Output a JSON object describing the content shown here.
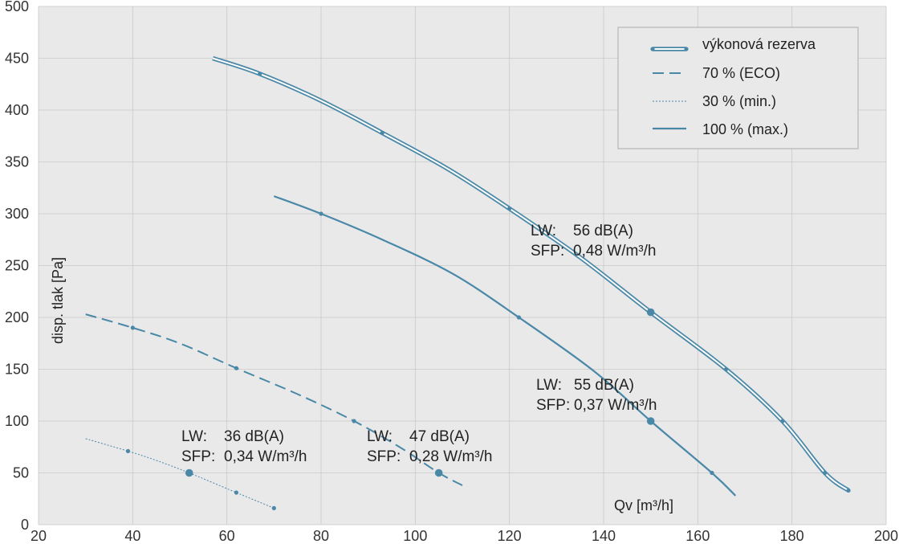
{
  "chart_data": {
    "type": "line",
    "xlabel": "Qv [m³/h]",
    "ylabel": "disp. tlak [Pa]",
    "xlim": [
      20,
      200
    ],
    "ylim": [
      0,
      500
    ],
    "xticks": [
      20,
      40,
      60,
      80,
      100,
      120,
      140,
      160,
      180,
      200
    ],
    "yticks": [
      0,
      50,
      100,
      150,
      200,
      250,
      300,
      350,
      400,
      450,
      500
    ],
    "grid": true,
    "legend_position": "top-right",
    "colors": {
      "line": "#4a88a8",
      "background": "#e9e9e9",
      "grid": "#c9c9c9"
    },
    "series": [
      {
        "name": "výkonová rezerva",
        "style": "double",
        "points": [
          [
            57,
            450
          ],
          [
            67,
            435
          ],
          [
            80,
            409
          ],
          [
            93,
            378
          ],
          [
            107,
            343
          ],
          [
            120,
            305
          ],
          [
            135,
            258
          ],
          [
            150,
            205
          ],
          [
            166,
            150
          ],
          [
            178,
            100
          ],
          [
            187,
            50
          ],
          [
            192,
            33
          ]
        ],
        "markers": [
          [
            67,
            435
          ],
          [
            93,
            378
          ],
          [
            120,
            305
          ],
          [
            166,
            150
          ],
          [
            178,
            100
          ],
          [
            187,
            50
          ],
          [
            192,
            33
          ]
        ],
        "big_markers": [
          [
            150,
            205
          ]
        ]
      },
      {
        "name": "100 % (max.)",
        "style": "solid",
        "points": [
          [
            70,
            317
          ],
          [
            80,
            300
          ],
          [
            93,
            275
          ],
          [
            108,
            242
          ],
          [
            122,
            200
          ],
          [
            138,
            148
          ],
          [
            150,
            100
          ],
          [
            163,
            50
          ],
          [
            168,
            28
          ]
        ],
        "markers": [
          [
            80,
            300
          ],
          [
            122,
            200
          ],
          [
            163,
            50
          ]
        ],
        "big_markers": [
          [
            150,
            100
          ]
        ]
      },
      {
        "name": "70 % (ECO)",
        "style": "dashed",
        "points": [
          [
            30,
            203
          ],
          [
            40,
            190
          ],
          [
            50,
            175
          ],
          [
            62,
            151
          ],
          [
            75,
            126
          ],
          [
            87,
            100
          ],
          [
            97,
            74
          ],
          [
            105,
            50
          ],
          [
            110,
            38
          ]
        ],
        "markers": [
          [
            40,
            190
          ],
          [
            62,
            151
          ],
          [
            87,
            100
          ]
        ],
        "big_markers": [
          [
            105,
            50
          ]
        ]
      },
      {
        "name": "30 % (min.)",
        "style": "dotted",
        "points": [
          [
            30,
            83
          ],
          [
            39,
            71
          ],
          [
            45,
            62
          ],
          [
            52,
            50
          ],
          [
            62,
            31
          ],
          [
            70,
            16
          ]
        ],
        "markers": [
          [
            39,
            71
          ],
          [
            62,
            31
          ],
          [
            70,
            16
          ]
        ],
        "big_markers": [
          [
            52,
            50
          ]
        ]
      }
    ],
    "annotations": [
      {
        "id": "ann1",
        "lw_label": "LW:",
        "lw": "56 dB(A)",
        "sfp_label": "SFP:",
        "sfp": "0,48 W/m³/h"
      },
      {
        "id": "ann2",
        "lw_label": "LW:",
        "lw": "55 dB(A)",
        "sfp_label": "SFP:",
        "sfp": "0,37 W/m³/h"
      },
      {
        "id": "ann3",
        "lw_label": "LW:",
        "lw": "36 dB(A)",
        "sfp_label": "SFP:",
        "sfp": "0,34 W/m³/h"
      },
      {
        "id": "ann4",
        "lw_label": "LW:",
        "lw": "47 dB(A)",
        "sfp_label": "SFP:",
        "sfp": "0,28 W/m³/h"
      }
    ],
    "legend": [
      {
        "label": "výkonová rezerva",
        "style": "double"
      },
      {
        "label": "70 % (ECO)",
        "style": "dashed"
      },
      {
        "label": "30 % (min.)",
        "style": "dotted"
      },
      {
        "label": "100 % (max.)",
        "style": "solid"
      }
    ]
  }
}
